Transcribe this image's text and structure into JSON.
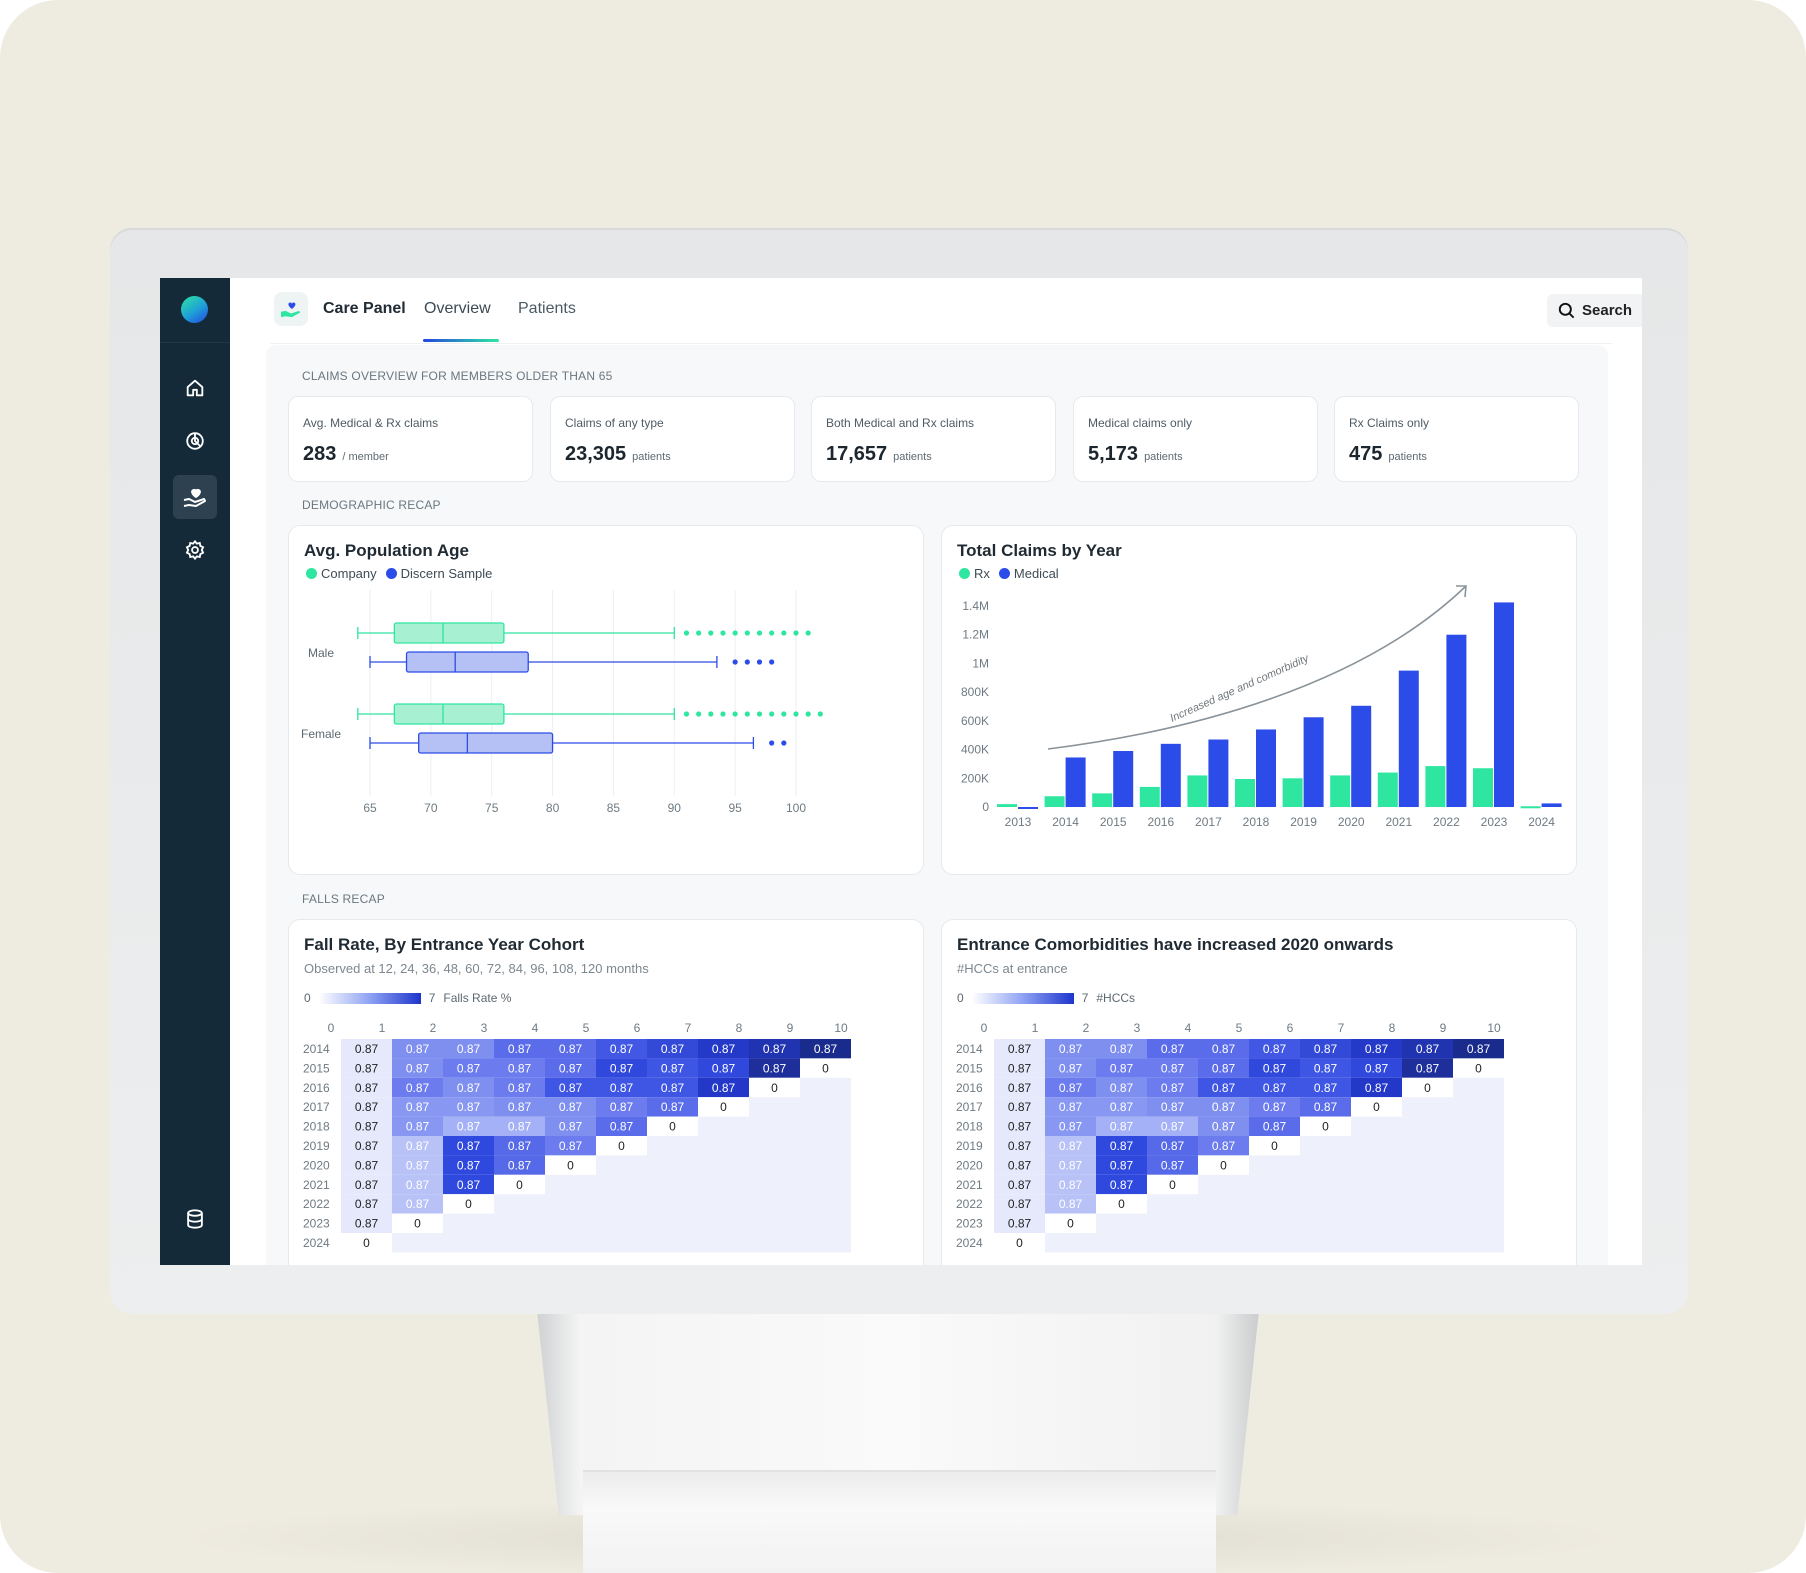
{
  "app": {
    "title": "Care Panel"
  },
  "tabs": [
    {
      "label": "Overview",
      "active": true
    },
    {
      "label": "Patients",
      "active": false
    }
  ],
  "search": {
    "label": "Search"
  },
  "sidebar": {
    "items": [
      {
        "icon": "home-icon"
      },
      {
        "icon": "analytics-icon"
      },
      {
        "icon": "care-hand-icon",
        "active": true
      },
      {
        "icon": "gear-icon"
      }
    ],
    "bottom_icon": "database-icon"
  },
  "sections": {
    "claims": "CLAIMS OVERVIEW FOR MEMBERS OLDER THAN 65",
    "demographic": "DEMOGRAPHIC RECAP",
    "falls": "FALLS RECAP"
  },
  "stats": [
    {
      "label": "Avg. Medical & Rx claims",
      "value": "283",
      "unit": "/ member"
    },
    {
      "label": "Claims of any type",
      "value": "23,305",
      "unit": "patients"
    },
    {
      "label": "Both Medical and Rx claims",
      "value": "17,657",
      "unit": "patients"
    },
    {
      "label": "Medical claims only",
      "value": "5,173",
      "unit": "patients"
    },
    {
      "label": "Rx Claims only",
      "value": "475",
      "unit": "patients"
    }
  ],
  "colors": {
    "green": "#2ee6a0",
    "blue": "#2b4ce8",
    "green_fill": "#a8f0d2",
    "blue_fill": "#b5c0f5",
    "sidebar": "#152a38"
  },
  "chart_data": [
    {
      "type": "boxplot",
      "title": "Avg. Population Age",
      "legend": [
        "Company",
        "Discern Sample"
      ],
      "categories": [
        "Male",
        "Female"
      ],
      "x_ticks": [
        "65",
        "70",
        "75",
        "80",
        "85",
        "90",
        "95",
        "100"
      ],
      "xlim": [
        63.5,
        101.5
      ],
      "series": [
        {
          "name": "Company",
          "data": [
            {
              "group": "Male",
              "whisker_low": 64,
              "q1": 67,
              "median": 71,
              "q3": 76,
              "whisker_high": 90,
              "outliers": [
                91,
                92,
                93,
                94,
                95,
                96,
                97,
                98,
                99,
                100,
                101
              ]
            },
            {
              "group": "Female",
              "whisker_low": 64,
              "q1": 67,
              "median": 71,
              "q3": 76,
              "whisker_high": 90,
              "outliers": [
                91,
                92,
                93,
                94,
                95,
                96,
                97,
                98,
                99,
                100,
                101,
                102
              ]
            }
          ]
        },
        {
          "name": "Discern Sample",
          "data": [
            {
              "group": "Male",
              "whisker_low": 65,
              "q1": 68,
              "median": 72,
              "q3": 78,
              "whisker_high": 93.5,
              "outliers": [
                95,
                96,
                97,
                98
              ]
            },
            {
              "group": "Female",
              "whisker_low": 65,
              "q1": 69,
              "median": 73,
              "q3": 80,
              "whisker_high": 96.5,
              "outliers": [
                98,
                99
              ]
            }
          ]
        }
      ]
    },
    {
      "type": "bar",
      "title": "Total Claims by Year",
      "legend": [
        "Rx",
        "Medical"
      ],
      "categories": [
        "2013",
        "2014",
        "2015",
        "2016",
        "2017",
        "2018",
        "2019",
        "2020",
        "2021",
        "2022",
        "2023",
        "2024"
      ],
      "y_ticks": [
        "0",
        "200K",
        "400K",
        "600K",
        "800K",
        "1M",
        "1.2M",
        "1.4M"
      ],
      "ylim": [
        0,
        1400000
      ],
      "series": [
        {
          "name": "Rx",
          "values": [
            20000,
            75000,
            95000,
            140000,
            220000,
            195000,
            200000,
            220000,
            240000,
            285000,
            270000,
            5000
          ]
        },
        {
          "name": "Medical",
          "values": [
            0,
            345000,
            390000,
            440000,
            470000,
            540000,
            625000,
            705000,
            950000,
            1200000,
            1425000,
            25000
          ]
        }
      ],
      "annotation": "Increased age and comorbidity"
    }
  ],
  "heatmaps": [
    {
      "title": "Fall Rate, By Entrance Year Cohort",
      "subtitle": "Observed at 12, 24, 36, 48, 60, 72, 84, 96, 108, 120 months",
      "legend_min": "0",
      "legend_max": "7",
      "legend_label": "Falls Rate %",
      "cols": [
        "0",
        "1",
        "2",
        "3",
        "4",
        "5",
        "6",
        "7",
        "8",
        "9",
        "10"
      ],
      "rows": [
        "2014",
        "2015",
        "2016",
        "2017",
        "2018",
        "2019",
        "2020",
        "2021",
        "2022",
        "2023",
        "2024"
      ],
      "cell_value": "0.87",
      "end_value": "0"
    },
    {
      "title": "Entrance Comorbidities have increased 2020 onwards",
      "subtitle": "#HCCs at entrance",
      "legend_min": "0",
      "legend_max": "7",
      "legend_label": "#HCCs",
      "cols": [
        "0",
        "1",
        "2",
        "3",
        "4",
        "5",
        "6",
        "7",
        "8",
        "9",
        "10"
      ],
      "rows": [
        "2014",
        "2015",
        "2016",
        "2017",
        "2018",
        "2019",
        "2020",
        "2021",
        "2022",
        "2023",
        "2024"
      ],
      "cell_value": "0.87",
      "end_value": "0"
    }
  ]
}
